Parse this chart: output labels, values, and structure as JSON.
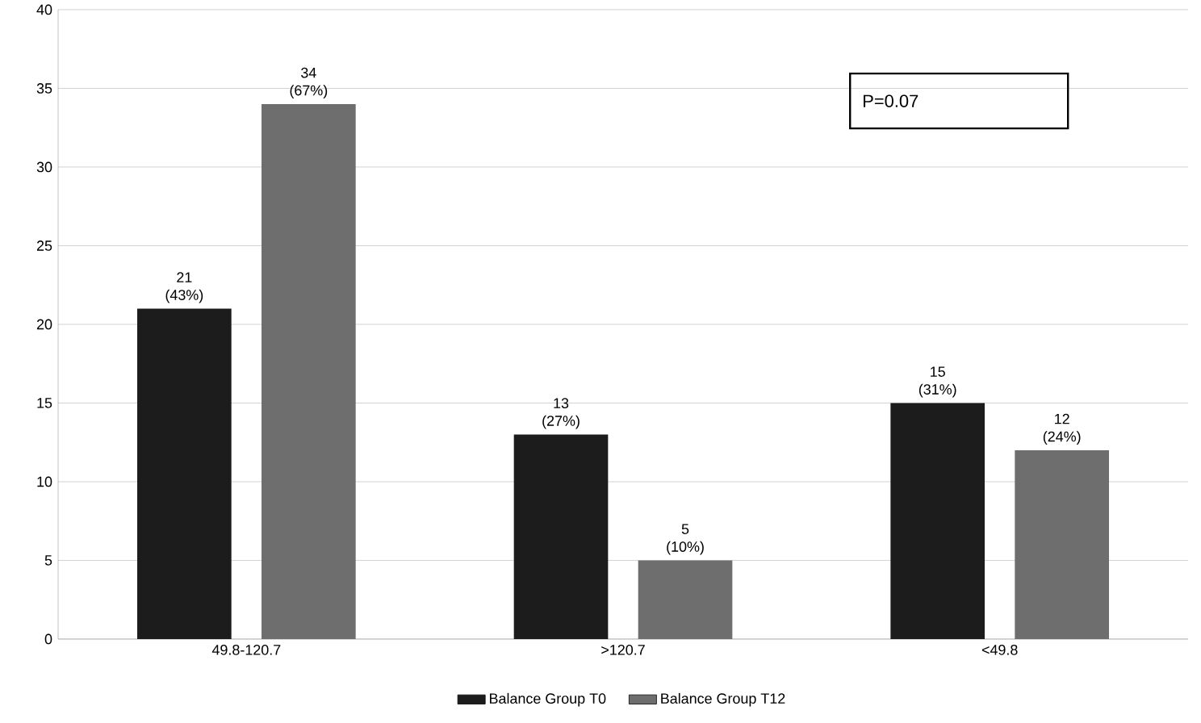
{
  "chart_data": {
    "type": "bar",
    "categories": [
      "49.8-120.7",
      ">120.7",
      "<49.8"
    ],
    "series": [
      {
        "name": "Balance Group T0",
        "color": "#1c1c1c",
        "values": [
          21,
          13,
          15
        ],
        "value_labels": [
          "21 (43%)",
          "13 (27%)",
          "15 (31%)"
        ]
      },
      {
        "name": "Balance Group T12",
        "color": "#6e6e6e",
        "values": [
          34,
          5,
          12
        ],
        "value_labels": [
          "34 (67%)",
          "5 (10%)",
          "12 (24%)"
        ]
      }
    ],
    "ylim": [
      0,
      40
    ],
    "yticks": [
      0,
      5,
      10,
      15,
      20,
      25,
      30,
      35,
      40
    ],
    "grid": "y",
    "legend": "bottom",
    "annotations": [
      "P=0.07"
    ]
  }
}
